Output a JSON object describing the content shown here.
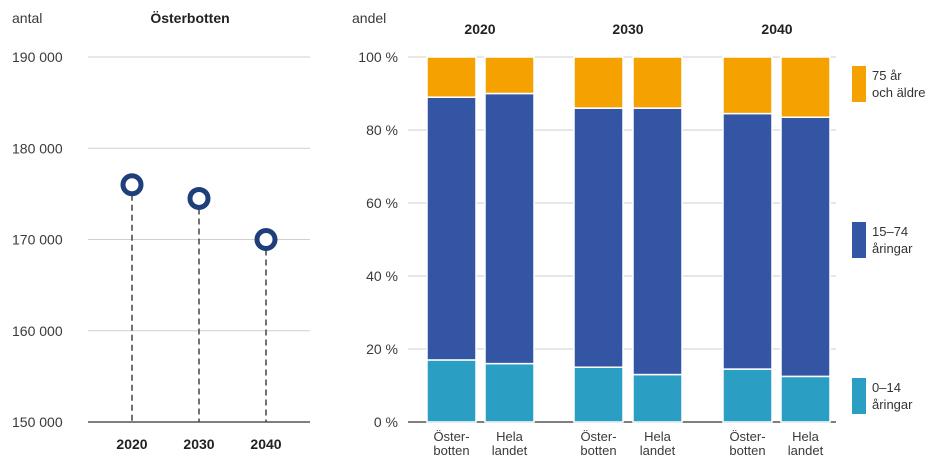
{
  "colors": {
    "elderly": "#F5A100",
    "working": "#3454A4",
    "children": "#2A9EC3",
    "marker": "#1F3F7A",
    "grid": "#cfcfcf",
    "axis": "#555555"
  },
  "chart_data": [
    {
      "type": "scatter",
      "title": "Österbotten",
      "ylabel": "antal",
      "xlabel": "",
      "categories": [
        "2020",
        "2030",
        "2040"
      ],
      "values": [
        176000,
        174500,
        170000
      ],
      "ylim": [
        150000,
        190000
      ],
      "yticks": [
        190000,
        180000,
        170000,
        160000,
        150000
      ],
      "ytick_labels": [
        "190 000",
        "180 000",
        "170 000",
        "160 000",
        "150 000"
      ],
      "grid": true,
      "marker": "ring-with-dashed-stem"
    },
    {
      "type": "bar",
      "stacked": true,
      "ylabel": "andel",
      "ylim": [
        0,
        100
      ],
      "yticks": [
        100,
        80,
        60,
        40,
        20,
        0
      ],
      "ytick_labels": [
        "100 %",
        "80 %",
        "60 %",
        "40 %",
        "20 %",
        "0 %"
      ],
      "groups": [
        "2020",
        "2030",
        "2040"
      ],
      "categories": [
        [
          "Öster-",
          "botten"
        ],
        [
          "Hela",
          "landet"
        ],
        [
          "Öster-",
          "botten"
        ],
        [
          "Hela",
          "landet"
        ],
        [
          "Öster-",
          "botten"
        ],
        [
          "Hela",
          "landet"
        ]
      ],
      "series": [
        {
          "name": "0–14 åringar",
          "legend_lines": [
            "0–14",
            "åringar"
          ],
          "color_key": "children",
          "values": [
            17,
            16,
            15,
            13,
            14.5,
            12.5
          ]
        },
        {
          "name": "15–74 åringar",
          "legend_lines": [
            "15–74",
            "åringar"
          ],
          "color_key": "working",
          "values": [
            72,
            74,
            71,
            73,
            70,
            71
          ]
        },
        {
          "name": "75 år och äldre",
          "legend_lines": [
            "75 år",
            "och äldre"
          ],
          "color_key": "elderly",
          "values": [
            11,
            10,
            14,
            14,
            15.5,
            16.5
          ]
        }
      ],
      "legend_position": "right",
      "grid": true
    }
  ]
}
